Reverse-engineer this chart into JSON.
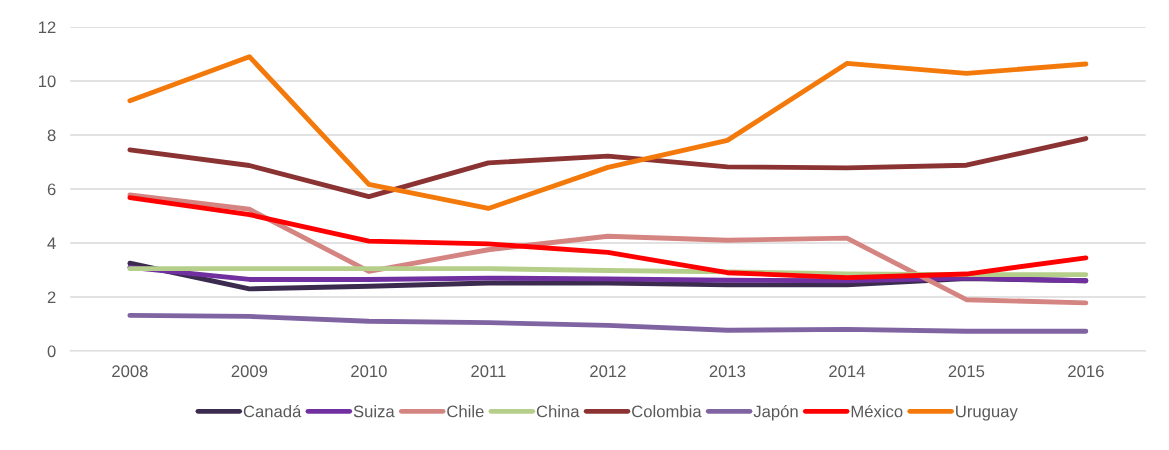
{
  "chart_data": {
    "type": "line",
    "categories": [
      "2008",
      "2009",
      "2010",
      "2011",
      "2012",
      "2013",
      "2014",
      "2015",
      "2016"
    ],
    "ylim": [
      0,
      12
    ],
    "yticks": [
      0,
      2,
      4,
      6,
      8,
      10,
      12
    ],
    "grid": "y",
    "legend": "bottom",
    "line_style": "solid",
    "marker": "none",
    "series": [
      {
        "name": "Canadá",
        "color": "#3b2c4f",
        "values": [
          3.25,
          2.3,
          2.4,
          2.52,
          2.52,
          2.45,
          2.45,
          2.68,
          2.6
        ]
      },
      {
        "name": "Suiza",
        "color": "#7030a0",
        "values": [
          3.1,
          2.65,
          2.65,
          2.7,
          2.67,
          2.62,
          2.6,
          2.7,
          2.6
        ]
      },
      {
        "name": "Chile",
        "color": "#d48582",
        "values": [
          5.78,
          5.25,
          2.95,
          3.75,
          4.25,
          4.1,
          4.18,
          1.9,
          1.78
        ]
      },
      {
        "name": "China",
        "color": "#b5cf8b",
        "values": [
          3.05,
          3.05,
          3.05,
          3.05,
          2.98,
          2.93,
          2.85,
          2.83,
          2.83
        ]
      },
      {
        "name": "Colombia",
        "color": "#8b3333",
        "values": [
          7.45,
          6.87,
          5.72,
          6.97,
          7.22,
          6.82,
          6.78,
          6.88,
          7.87
        ]
      },
      {
        "name": "Japón",
        "color": "#8064a2",
        "values": [
          1.32,
          1.28,
          1.1,
          1.05,
          0.95,
          0.77,
          0.8,
          0.73,
          0.73
        ]
      },
      {
        "name": "México",
        "color": "#ff0000",
        "values": [
          5.68,
          5.05,
          4.07,
          3.97,
          3.65,
          2.9,
          2.72,
          2.85,
          3.45
        ]
      },
      {
        "name": "Uruguay",
        "color": "#f4790b",
        "values": [
          9.27,
          10.9,
          6.17,
          5.28,
          6.8,
          7.8,
          10.65,
          10.28,
          10.63
        ]
      }
    ]
  }
}
